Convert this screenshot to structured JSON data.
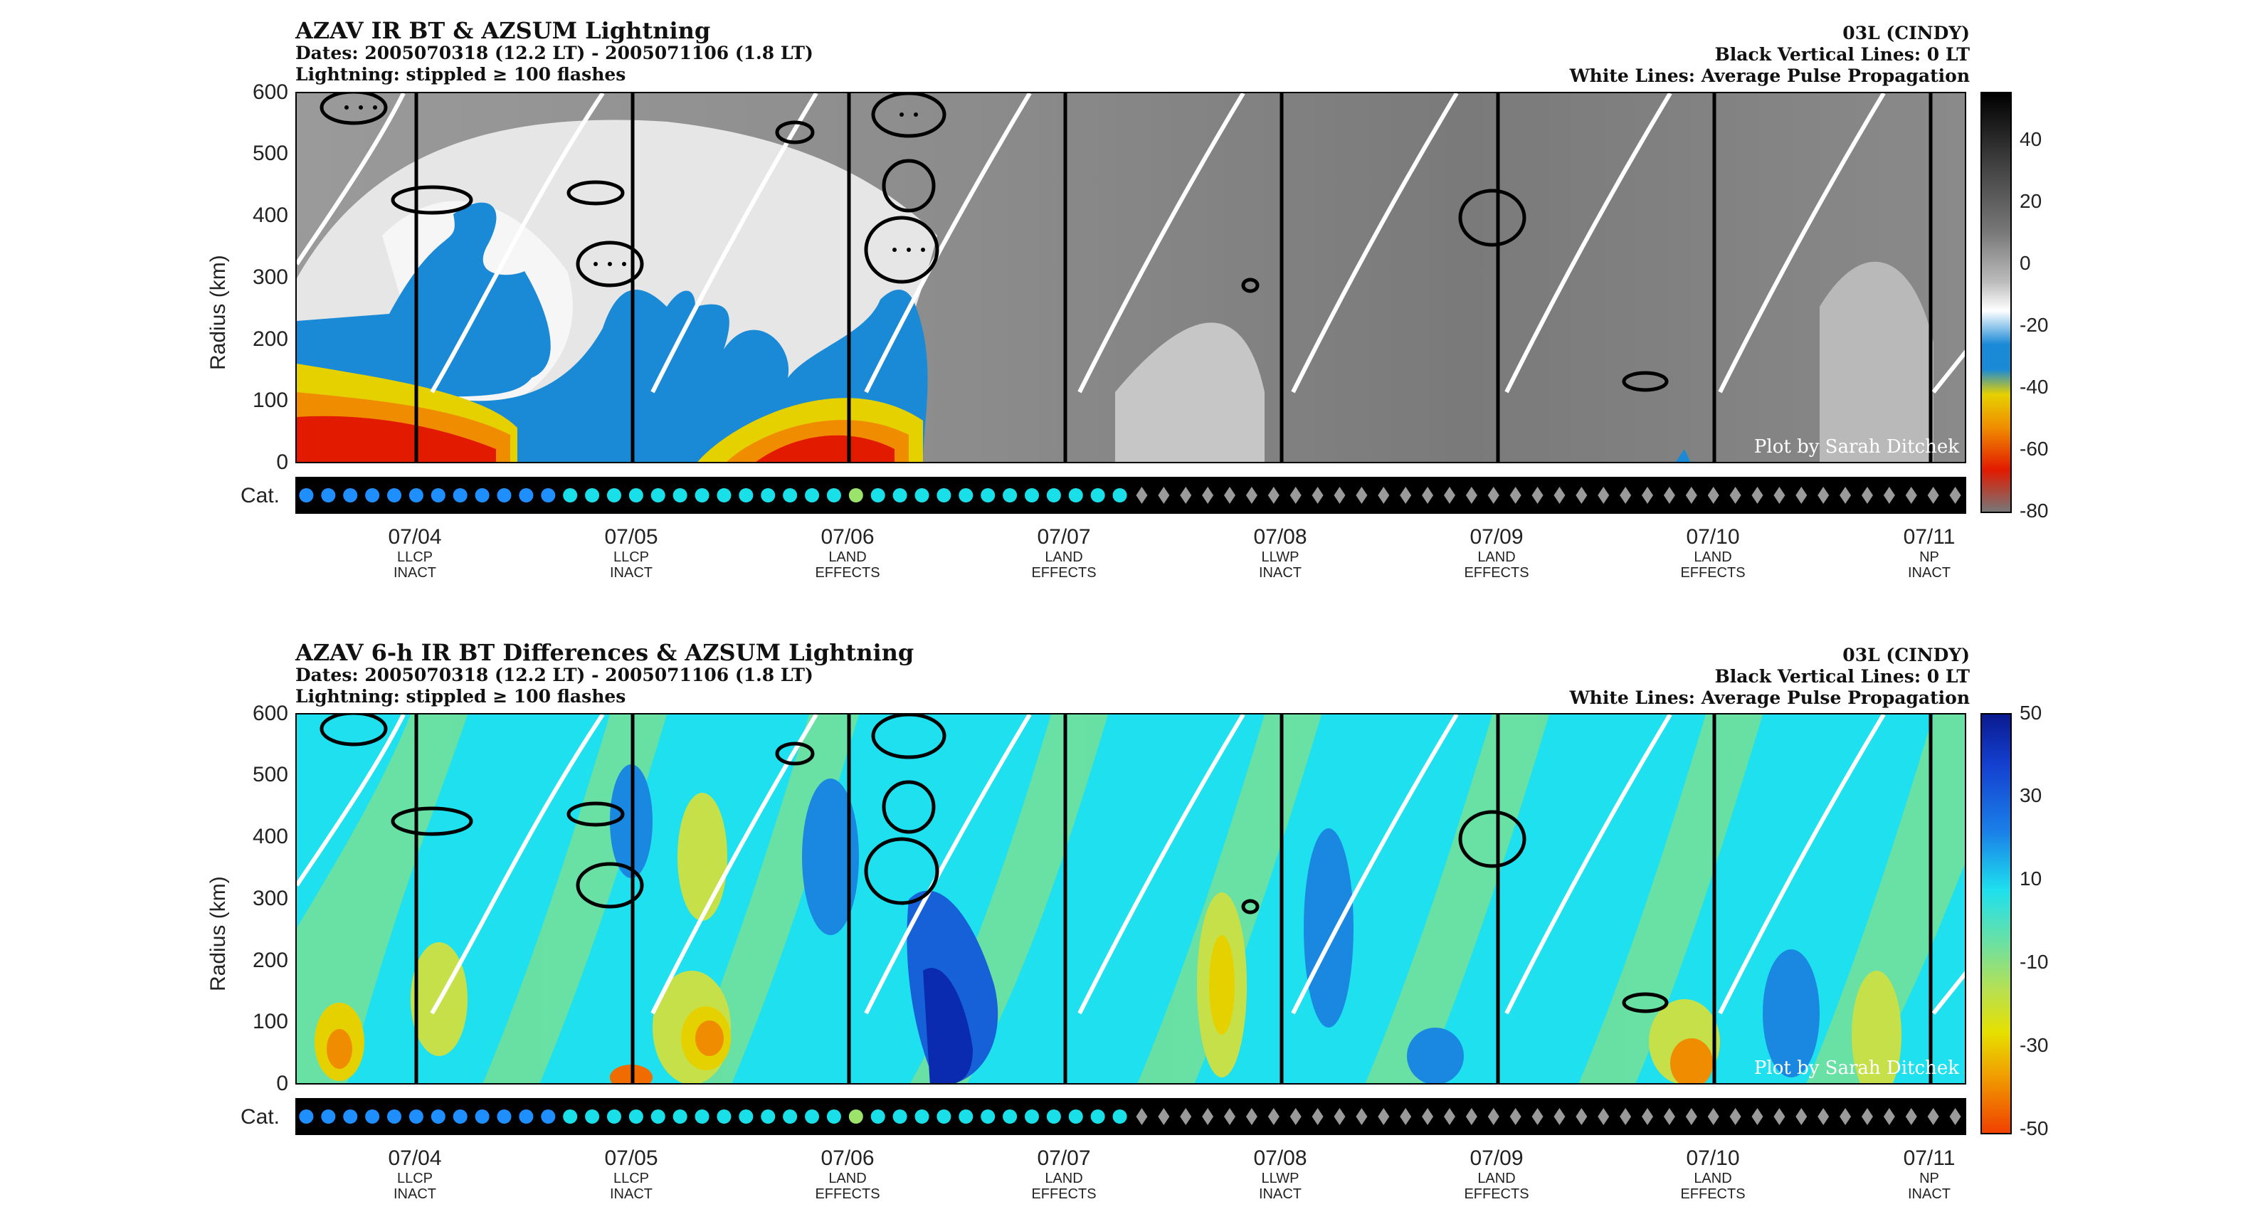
{
  "top": {
    "title": "AZAV IR BT & AZSUM Lightning",
    "dates": "Dates: 2005070318 (12.2 LT) - 2005071106 (1.8 LT)",
    "lightning": "Lightning: stippled ≥ 100 flashes",
    "storm": "03L (CINDY)",
    "black_lines": "Black Vertical Lines: 0 LT",
    "white_lines": "White Lines: Average Pulse Propagation",
    "ylabel": "Radius (km)",
    "cat_label": "Cat.",
    "credit": "Plot by Sarah Ditchek",
    "colorbar_ticks": [
      "40",
      "20",
      "0",
      "-20",
      "-40",
      "-60",
      "-80"
    ]
  },
  "bottom": {
    "title": "AZAV 6-h IR BT Differences & AZSUM Lightning",
    "dates": "Dates: 2005070318 (12.2 LT) - 2005071106 (1.8 LT)",
    "lightning": "Lightning: stippled ≥ 100 flashes",
    "storm": "03L (CINDY)",
    "black_lines": "Black Vertical Lines: 0 LT",
    "white_lines": "White Lines: Average Pulse Propagation",
    "ylabel": "Radius (km)",
    "cat_label": "Cat.",
    "credit": "Plot by Sarah Ditchek",
    "colorbar_ticks": [
      "50",
      "30",
      "10",
      "-10",
      "-30",
      "-50"
    ]
  },
  "y_ticks": [
    "600",
    "500",
    "400",
    "300",
    "200",
    "100",
    "0"
  ],
  "x_ticks": [
    {
      "date": "07/04",
      "l1": "LLCP",
      "l2": "INACT"
    },
    {
      "date": "07/05",
      "l1": "LLCP",
      "l2": "INACT"
    },
    {
      "date": "07/06",
      "l1": "LAND",
      "l2": "EFFECTS"
    },
    {
      "date": "07/07",
      "l1": "LAND",
      "l2": "EFFECTS"
    },
    {
      "date": "07/08",
      "l1": "LLWP",
      "l2": "INACT"
    },
    {
      "date": "07/09",
      "l1": "LAND",
      "l2": "EFFECTS"
    },
    {
      "date": "07/10",
      "l1": "LAND",
      "l2": "EFFECTS"
    },
    {
      "date": "07/11",
      "l1": "NP",
      "l2": "INACT"
    }
  ],
  "colors": {
    "cat_td": "#1f8fff",
    "cat_ts": "#19e0e8",
    "cat_tsh": "#9be36a",
    "cat_ex": "#9a9a9a",
    "white_line": "#ffffff",
    "black_line": "#000000"
  },
  "chart_data": [
    {
      "type": "heatmap",
      "title": "AZAV IR BT & AZSUM Lightning",
      "ylabel": "Radius (km)",
      "ylim": [
        0,
        600
      ],
      "x_ticks": [
        "07/04",
        "07/05",
        "07/06",
        "07/07",
        "07/08",
        "07/09",
        "07/10",
        "07/11"
      ],
      "colorbar_range": [
        -80,
        50
      ],
      "category_series": {
        "td": 12,
        "ts_a": 13,
        "tsh": 1,
        "ts_b": 12,
        "ex": 38
      }
    },
    {
      "type": "heatmap",
      "title": "AZAV 6-h IR BT Differences & AZSUM Lightning",
      "ylabel": "Radius (km)",
      "ylim": [
        0,
        600
      ],
      "x_ticks": [
        "07/04",
        "07/05",
        "07/06",
        "07/07",
        "07/08",
        "07/09",
        "07/10",
        "07/11"
      ],
      "colorbar_range": [
        -50,
        50
      ]
    }
  ]
}
